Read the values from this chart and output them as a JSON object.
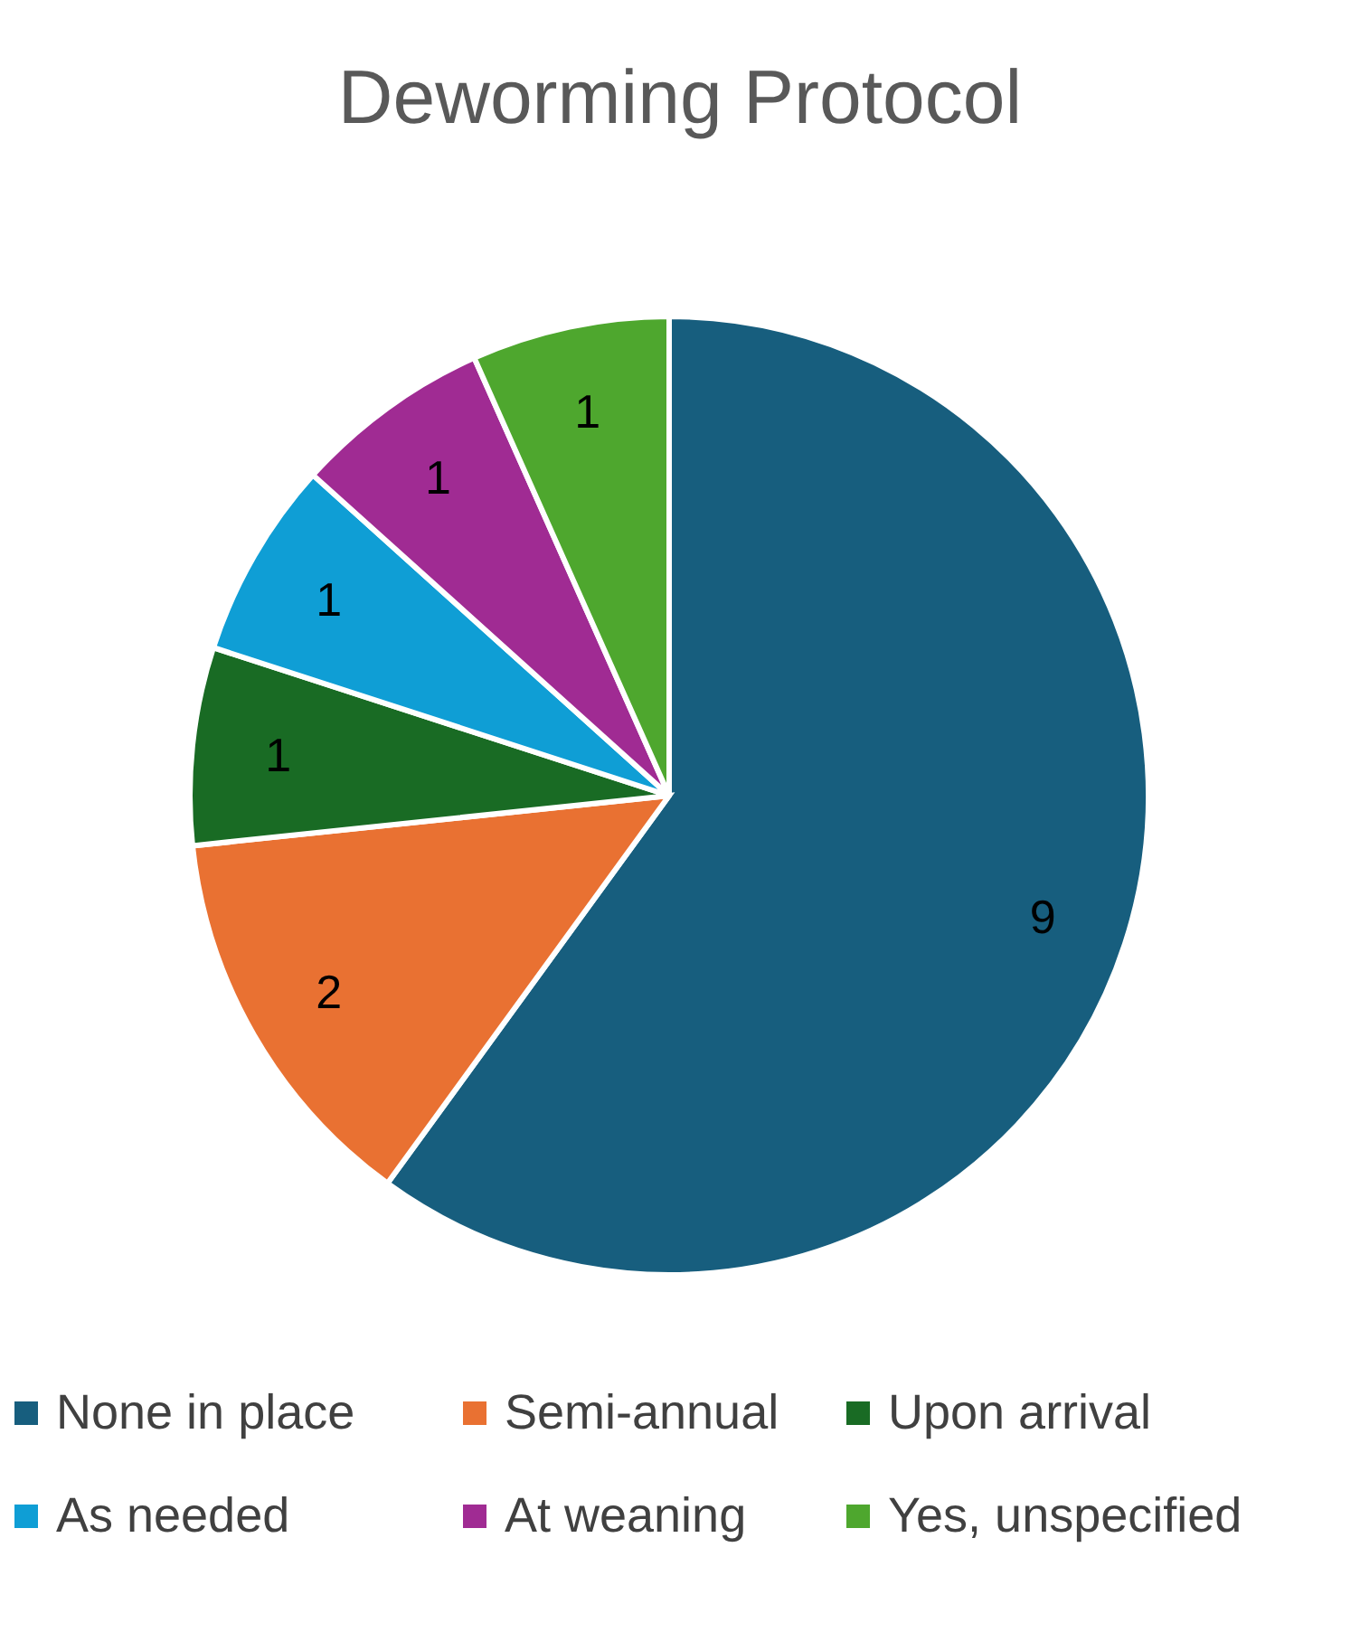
{
  "chart_data": {
    "type": "pie",
    "title": "Deworming Protocol",
    "categories": [
      "None in place",
      "Semi-annual",
      "Upon arrival",
      "As needed",
      "At weaning",
      "Yes, unspecified"
    ],
    "values": [
      9,
      2,
      1,
      1,
      1,
      1
    ],
    "colors": [
      "#175e7e",
      "#e97132",
      "#196b24",
      "#0f9ed5",
      "#a02b93",
      "#4ea72e"
    ],
    "data_labels": true,
    "legend": "bottom"
  }
}
